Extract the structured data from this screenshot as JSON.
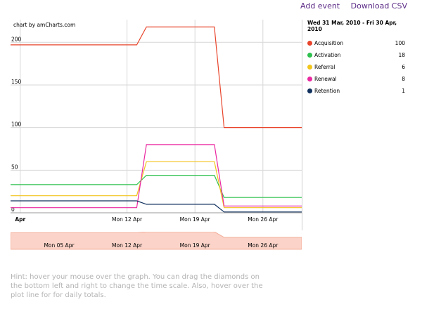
{
  "links": {
    "add_event": "Add event",
    "download_csv": "Download CSV"
  },
  "chart_credit": "chart by amCharts.com",
  "legend_range": "Wed 31 Mar, 2010 - Fri 30 Apr, 2010",
  "hint": "Hint: hover your mouse over the graph. You can drag the diamonds on the bottom left and right to change the time scale. Also, hover over the plot line for for daily totals.",
  "colors": {
    "grid": "#d7d7d7",
    "scroller_fill": "#fbd3c8",
    "scroller_line": "#f0a088"
  },
  "scroller_labels": [
    "Mon 05 Apr",
    "Mon 12 Apr",
    "Mon 19 Apr",
    "Mon 26 Apr"
  ],
  "chart_data": {
    "type": "line",
    "x_tick_labels": [
      "Apr",
      "Mon 12 Apr",
      "Mon 19 Apr",
      "Mon 26 Apr"
    ],
    "ylim": [
      0,
      220
    ],
    "y_ticks": [
      0,
      50,
      100,
      150,
      200
    ],
    "series": [
      {
        "name": "Acquisition",
        "color": "#e8452c",
        "legend_value": "100",
        "points": [
          [
            "2010-03-31",
            197
          ],
          [
            "2010-04-13",
            197
          ],
          [
            "2010-04-14",
            218
          ],
          [
            "2010-04-21",
            218
          ],
          [
            "2010-04-22",
            100
          ],
          [
            "2010-04-30",
            100
          ]
        ]
      },
      {
        "name": "Activation",
        "color": "#2ec04e",
        "legend_value": "18",
        "points": [
          [
            "2010-03-31",
            33
          ],
          [
            "2010-04-13",
            33
          ],
          [
            "2010-04-14",
            44
          ],
          [
            "2010-04-21",
            44
          ],
          [
            "2010-04-22",
            18
          ],
          [
            "2010-04-30",
            18
          ]
        ]
      },
      {
        "name": "Referral",
        "color": "#f2c51b",
        "legend_value": "6",
        "points": [
          [
            "2010-03-31",
            20
          ],
          [
            "2010-04-13",
            20
          ],
          [
            "2010-04-14",
            60
          ],
          [
            "2010-04-21",
            60
          ],
          [
            "2010-04-22",
            6
          ],
          [
            "2010-04-30",
            6
          ]
        ]
      },
      {
        "name": "Renewal",
        "color": "#ea28a0",
        "legend_value": "8",
        "points": [
          [
            "2010-03-31",
            6
          ],
          [
            "2010-04-13",
            6
          ],
          [
            "2010-04-14",
            80
          ],
          [
            "2010-04-21",
            80
          ],
          [
            "2010-04-22",
            8
          ],
          [
            "2010-04-30",
            8
          ]
        ]
      },
      {
        "name": "Retention",
        "color": "#10305e",
        "legend_value": "1",
        "points": [
          [
            "2010-03-31",
            14
          ],
          [
            "2010-04-13",
            14
          ],
          [
            "2010-04-14",
            10
          ],
          [
            "2010-04-21",
            10
          ],
          [
            "2010-04-22",
            1
          ],
          [
            "2010-04-30",
            1
          ]
        ]
      }
    ]
  }
}
